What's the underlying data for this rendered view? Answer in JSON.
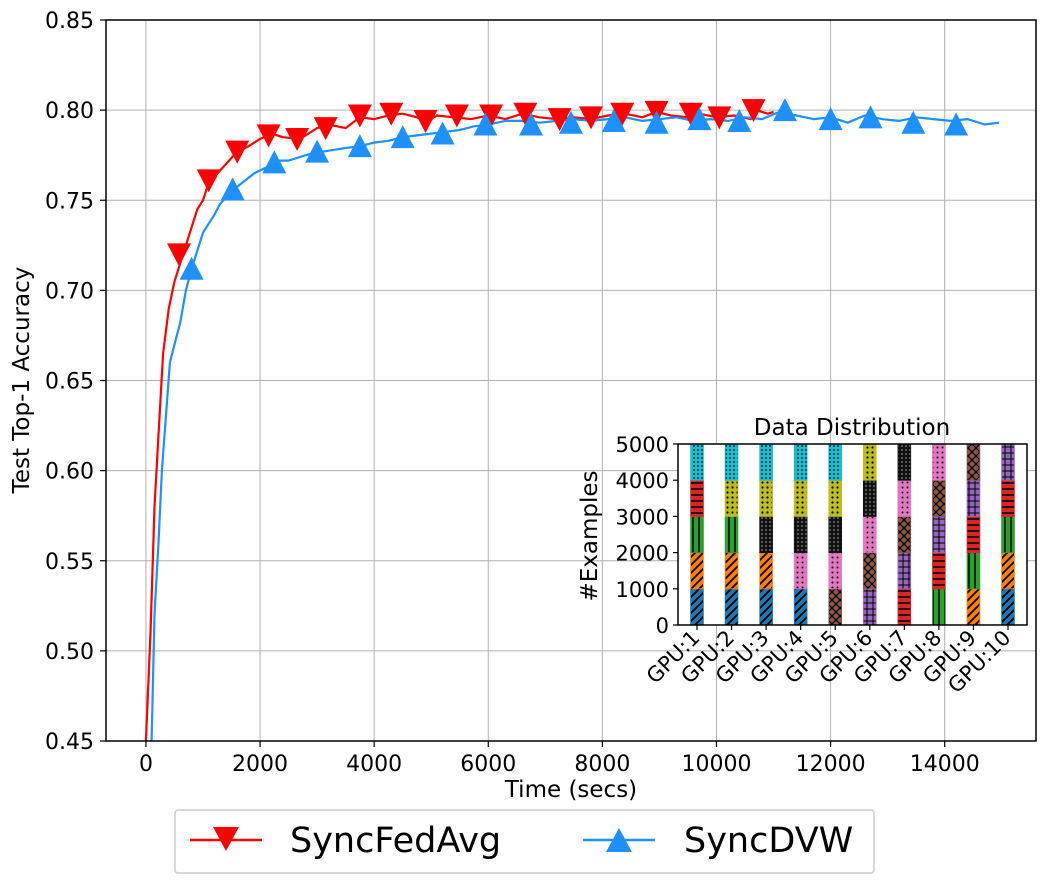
{
  "chart_data": [
    {
      "type": "line",
      "title": "",
      "xlabel": "Time (secs)",
      "ylabel": "Test Top-1 Accuracy",
      "xlim": [
        -700,
        15600
      ],
      "ylim": [
        0.45,
        0.85
      ],
      "xticks": [
        0,
        2000,
        4000,
        6000,
        8000,
        10000,
        12000,
        14000
      ],
      "xtick_labels": [
        "0",
        "2000",
        "4000",
        "6000",
        "8000",
        "10000",
        "12000",
        "14000"
      ],
      "yticks": [
        0.45,
        0.5,
        0.55,
        0.6,
        0.65,
        0.7,
        0.75,
        0.8,
        0.85
      ],
      "ytick_labels": [
        "0.45",
        "0.50",
        "0.55",
        "0.60",
        "0.65",
        "0.70",
        "0.75",
        "0.80",
        "0.85"
      ],
      "grid": true,
      "legend_position": "bottom-outside",
      "series": [
        {
          "name": "SyncFedAvg",
          "color": "#ff0000",
          "marker": "triangle-down",
          "x": [
            0,
            80,
            150,
            220,
            300,
            400,
            500,
            600,
            700,
            800,
            900,
            1000,
            1100,
            1200,
            1400,
            1600,
            1800,
            2000,
            2200,
            2400,
            2700,
            3000,
            3200,
            3500,
            3750,
            4000,
            4250,
            4500,
            4750,
            4900,
            5100,
            5400,
            5700,
            6000,
            6300,
            6600,
            6900,
            7200,
            7500,
            7800,
            8100,
            8400,
            8700,
            8950,
            9200,
            9500,
            9700,
            10000,
            10300,
            10600,
            10700,
            10900,
            11000
          ],
          "y": [
            0.45,
            0.51,
            0.58,
            0.62,
            0.665,
            0.69,
            0.705,
            0.715,
            0.725,
            0.735,
            0.745,
            0.75,
            0.76,
            0.763,
            0.77,
            0.777,
            0.78,
            0.784,
            0.787,
            0.785,
            0.784,
            0.79,
            0.792,
            0.79,
            0.796,
            0.795,
            0.797,
            0.798,
            0.796,
            0.793,
            0.797,
            0.796,
            0.795,
            0.797,
            0.795,
            0.798,
            0.796,
            0.795,
            0.796,
            0.795,
            0.797,
            0.798,
            0.796,
            0.799,
            0.797,
            0.796,
            0.798,
            0.796,
            0.797,
            0.795,
            0.8,
            0.798,
            0.799
          ],
          "marker_x": [
            580,
            1100,
            1600,
            2150,
            2650,
            3150,
            3750,
            4300,
            4900,
            5450,
            6050,
            6650,
            7250,
            7800,
            8350,
            8950,
            9550,
            10050,
            10650
          ],
          "marker_y": [
            0.72,
            0.761,
            0.777,
            0.786,
            0.784,
            0.79,
            0.797,
            0.798,
            0.794,
            0.797,
            0.797,
            0.798,
            0.795,
            0.796,
            0.798,
            0.799,
            0.798,
            0.796,
            0.8
          ]
        },
        {
          "name": "SyncDVW",
          "color": "#1e90ff",
          "marker": "triangle-up",
          "x": [
            100,
            150,
            220,
            280,
            350,
            420,
            500,
            600,
            700,
            800,
            900,
            1000,
            1100,
            1200,
            1300,
            1500,
            1700,
            1900,
            2100,
            2300,
            2500,
            2700,
            2900,
            3100,
            3300,
            3500,
            3750,
            4000,
            4250,
            4500,
            4750,
            5000,
            5250,
            5500,
            5750,
            6000,
            6300,
            6600,
            6900,
            7200,
            7500,
            7800,
            8100,
            8400,
            8700,
            9000,
            9300,
            9600,
            9900,
            10200,
            10500,
            10800,
            11100,
            11400,
            11700,
            12000,
            12300,
            12600,
            12900,
            13200,
            13500,
            13800,
            14100,
            14400,
            14700,
            14950
          ],
          "y": [
            0.45,
            0.52,
            0.56,
            0.6,
            0.63,
            0.66,
            0.67,
            0.682,
            0.7,
            0.712,
            0.722,
            0.732,
            0.737,
            0.742,
            0.748,
            0.755,
            0.76,
            0.765,
            0.768,
            0.772,
            0.772,
            0.774,
            0.776,
            0.777,
            0.778,
            0.779,
            0.78,
            0.782,
            0.783,
            0.785,
            0.786,
            0.787,
            0.788,
            0.789,
            0.791,
            0.792,
            0.794,
            0.794,
            0.793,
            0.794,
            0.795,
            0.794,
            0.795,
            0.796,
            0.794,
            0.795,
            0.796,
            0.794,
            0.795,
            0.794,
            0.796,
            0.795,
            0.799,
            0.797,
            0.795,
            0.796,
            0.793,
            0.797,
            0.795,
            0.794,
            0.796,
            0.795,
            0.794,
            0.795,
            0.792,
            0.793
          ],
          "marker_x": [
            800,
            1520,
            2250,
            3000,
            3750,
            4500,
            5200,
            5950,
            6750,
            7450,
            8200,
            8950,
            9700,
            10400,
            11200,
            12000,
            12700,
            13450,
            14200
          ],
          "marker_y": [
            0.712,
            0.756,
            0.771,
            0.777,
            0.78,
            0.785,
            0.787,
            0.792,
            0.792,
            0.793,
            0.794,
            0.793,
            0.795,
            0.794,
            0.8,
            0.795,
            0.796,
            0.793,
            0.792
          ]
        }
      ]
    },
    {
      "type": "bar",
      "stacked": true,
      "title": "Data Distribution",
      "xlabel": "",
      "ylabel": "#Examples",
      "ylim": [
        0,
        5000
      ],
      "yticks": [
        0,
        1000,
        2000,
        3000,
        4000,
        5000
      ],
      "ytick_labels": [
        "0",
        "1000",
        "2000",
        "3000",
        "4000",
        "5000"
      ],
      "categories": [
        "GPU:1",
        "GPU:2",
        "GPU:3",
        "GPU:4",
        "GPU:5",
        "GPU:6",
        "GPU:7",
        "GPU:8",
        "GPU:9",
        "GPU:10"
      ],
      "class_colors": [
        "#1f77b4",
        "#ff7f0e",
        "#2ca02c",
        "#d62728",
        "#9467bd",
        "#8c564b",
        "#e377c2",
        "#111111",
        "#bcbd22",
        "#17becf"
      ],
      "stacks": [
        [
          0,
          1,
          2,
          3,
          9
        ],
        [
          0,
          1,
          2,
          8,
          9
        ],
        [
          0,
          1,
          7,
          8,
          9
        ],
        [
          0,
          6,
          7,
          8,
          9
        ],
        [
          5,
          6,
          7,
          8,
          9
        ],
        [
          4,
          5,
          6,
          7,
          8
        ],
        [
          3,
          4,
          5,
          6,
          7
        ],
        [
          2,
          3,
          4,
          5,
          6
        ],
        [
          1,
          2,
          3,
          4,
          5
        ],
        [
          0,
          1,
          2,
          3,
          4
        ]
      ],
      "segment_value": 1000
    }
  ]
}
